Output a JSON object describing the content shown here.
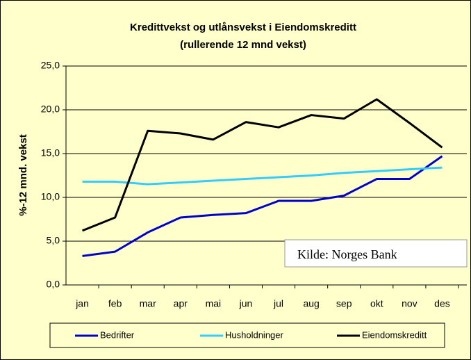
{
  "chart_data": {
    "type": "line",
    "title": "Kredittvekst og utlånsvekst i Eiendomskreditt",
    "subtitle": "(rullerende 12 mnd vekst)",
    "ylabel": "%-12 mnd. vekst",
    "annotation": "Kilde: Norges Bank",
    "categories": [
      "jan",
      "feb",
      "mar",
      "apr",
      "mai",
      "jun",
      "jul",
      "aug",
      "sep",
      "okt",
      "nov",
      "des"
    ],
    "series": [
      {
        "name": "Bedrifter",
        "color": "#0000CC",
        "values": [
          3.3,
          3.8,
          6.0,
          7.7,
          8.0,
          8.2,
          9.6,
          9.6,
          10.2,
          12.1,
          12.1,
          14.7
        ]
      },
      {
        "name": "Husholdninger",
        "color": "#33CCFF",
        "values": [
          11.8,
          11.8,
          11.5,
          11.7,
          11.9,
          12.1,
          12.3,
          12.5,
          12.8,
          13.0,
          13.2,
          13.4
        ]
      },
      {
        "name": "Eiendomskreditt",
        "color": "#000000",
        "values": [
          6.2,
          7.7,
          17.6,
          17.3,
          16.6,
          18.6,
          18.0,
          19.4,
          19.0,
          21.2,
          18.5,
          15.7
        ]
      }
    ],
    "ylim": [
      0,
      25
    ],
    "yticks": [
      {
        "value": 0,
        "label": "0,0"
      },
      {
        "value": 5,
        "label": "5,0"
      },
      {
        "value": 10,
        "label": "10,0"
      },
      {
        "value": 15,
        "label": "15,0"
      },
      {
        "value": 20,
        "label": "20,0"
      },
      {
        "value": 25,
        "label": "25,0"
      }
    ],
    "grid": true
  }
}
